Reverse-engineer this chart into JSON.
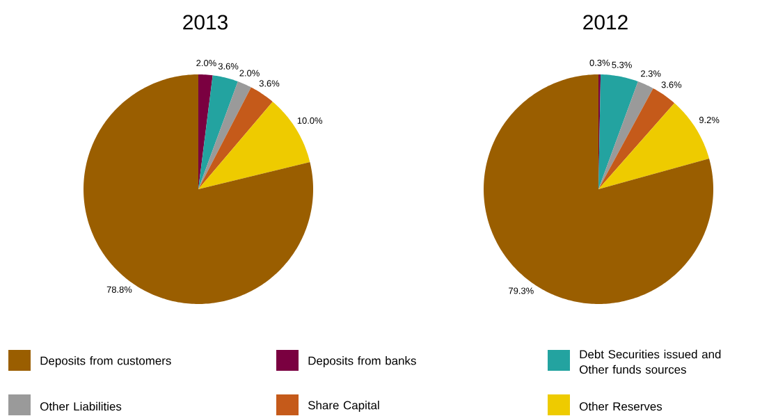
{
  "chart_data": [
    {
      "type": "pie",
      "title": "2013",
      "categories": [
        "Deposits from customers",
        "Deposits from banks",
        "Debt Securities issued and Other funds sources",
        "Other Liabilities",
        "Share Capital",
        "Other Reserves"
      ],
      "values": [
        78.8,
        2.0,
        3.6,
        2.0,
        3.6,
        10.0
      ],
      "value_labels": [
        "78.8%",
        "2.0%",
        "3.6%",
        "2.0%",
        "3.6%",
        "10.0%"
      ],
      "colors": [
        "#9a5e00",
        "#7a0040",
        "#23a3a0",
        "#9a9a9a",
        "#c55a1a",
        "#eecb00"
      ],
      "legend": "bottom"
    },
    {
      "type": "pie",
      "title": "2012",
      "values": [
        79.3,
        0.3,
        5.3,
        2.3,
        3.6,
        9.2
      ],
      "value_labels": [
        "79.3%",
        "0.3%",
        "5.3%",
        "2.3%",
        "3.6%",
        "9.2%"
      ],
      "colors": [
        "#9a5e00",
        "#7a0040",
        "#23a3a0",
        "#9a9a9a",
        "#c55a1a",
        "#eecb00"
      ]
    }
  ]
}
